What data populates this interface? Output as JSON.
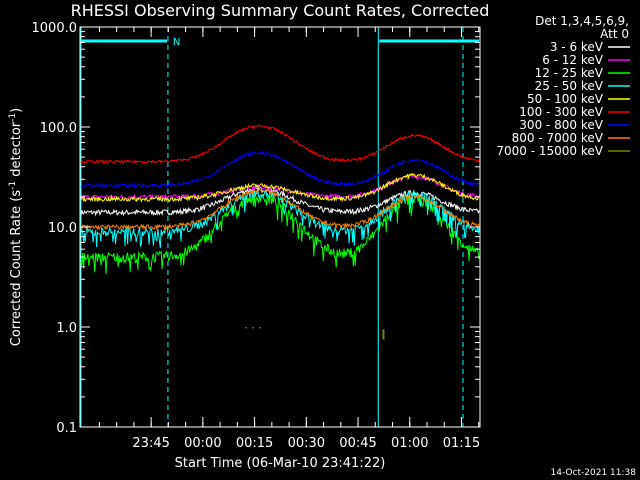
{
  "chart_data": {
    "type": "line",
    "title": "RHESSI Observing Summary Count Rates, Corrected",
    "xlabel": "Start Time (06-Mar-10 23:41:22)",
    "ylabel": "Corrected Count Rate (s",
    "ylabel_sup": "-1",
    "ylabel_tail": " detector",
    "ylabel_sup2": "-1",
    "ylabel_end": ")",
    "yscale": "log",
    "ylim": [
      0.1,
      1000
    ],
    "xlim_minutes": [
      -17,
      99
    ],
    "x_ticks": [
      {
        "label": "23:45",
        "minute": 3.6333
      },
      {
        "label": "00:00",
        "minute": 18.6333
      },
      {
        "label": "00:15",
        "minute": 33.6333
      },
      {
        "label": "00:30",
        "minute": 48.6333
      },
      {
        "label": "00:45",
        "minute": 63.6333
      },
      {
        "label": "01:00",
        "minute": 78.6333
      },
      {
        "label": "01:15",
        "minute": 93.6333
      }
    ],
    "y_ticks": [
      "1000.0",
      "100.0",
      "10.0",
      "1.0",
      "0.1"
    ],
    "legend_header": [
      "Det 1,3,4,5,6,9,",
      "Att 0"
    ],
    "legend_position": "right",
    "footer_date": "14-Oct-2021 11:38",
    "night_marker": "N",
    "series": [
      {
        "name": "3 - 6 keV",
        "color": "#ffffff",
        "base": 14,
        "amp1": 10,
        "amp2": 8,
        "noise": 0.06
      },
      {
        "name": "6 - 12 keV",
        "color": "#ff00ff",
        "base": 20,
        "amp1": 5,
        "amp2": 12,
        "noise": 0.05
      },
      {
        "name": "12 - 25 keV",
        "color": "#00ff00",
        "base": 5,
        "amp1": 15,
        "amp2": 14,
        "noise": 0.12
      },
      {
        "name": "25 - 50 keV",
        "color": "#00ffff",
        "base": 9,
        "amp1": 13,
        "amp2": 12,
        "noise": 0.1
      },
      {
        "name": "50 - 100 keV",
        "color": "#ffff00",
        "base": 19,
        "amp1": 7,
        "amp2": 14,
        "noise": 0.05
      },
      {
        "name": "100 - 300 keV",
        "color": "#ff0000",
        "base": 45,
        "amp1": 57,
        "amp2": 37,
        "noise": 0.03
      },
      {
        "name": "300 - 800 keV",
        "color": "#0000ff",
        "base": 26,
        "amp1": 29,
        "amp2": 21,
        "noise": 0.04
      },
      {
        "name": "800 - 7000 keV",
        "color": "#ff8000",
        "base": 10,
        "amp1": 13,
        "amp2": 10,
        "noise": 0.05
      },
      {
        "name": "7000 - 15000 keV",
        "color": "#808000",
        "base": 1,
        "amp1": 0,
        "amp2": 0,
        "noise": 0
      }
    ],
    "saa_intervals_minutes": [
      [
        -17,
        8.5
      ],
      [
        69.5,
        99
      ]
    ],
    "night_start_minute": 8.5
  }
}
